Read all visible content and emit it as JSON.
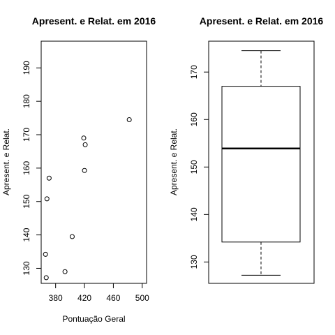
{
  "chart_data": [
    {
      "type": "scatter",
      "title": "Apresent. e Relat. em 2016",
      "xlabel": "Pontuação Geral",
      "ylabel": "Apresent. e Relat.",
      "xlim": [
        360,
        506
      ],
      "ylim": [
        125.5,
        198
      ],
      "xticks": [
        380,
        420,
        460,
        500
      ],
      "yticks": [
        130,
        140,
        150,
        160,
        170,
        180,
        190
      ],
      "points": [
        {
          "x": 366,
          "y": 134.2
        },
        {
          "x": 367,
          "y": 127.2
        },
        {
          "x": 368,
          "y": 150.8
        },
        {
          "x": 371,
          "y": 157.0
        },
        {
          "x": 393,
          "y": 129.0
        },
        {
          "x": 403,
          "y": 139.5
        },
        {
          "x": 419,
          "y": 169.0
        },
        {
          "x": 420,
          "y": 159.3
        },
        {
          "x": 421,
          "y": 167.0
        },
        {
          "x": 482,
          "y": 174.5
        }
      ]
    },
    {
      "type": "box",
      "title": "Apresent. e Relat. em 2016",
      "ylabel": "Apresent. e Relat.",
      "ylim": [
        125.5,
        176.5
      ],
      "yticks": [
        130,
        140,
        150,
        160,
        170
      ],
      "min": 127.2,
      "q1": 134.2,
      "median": 153.9,
      "q3": 167.0,
      "max": 174.5
    }
  ]
}
